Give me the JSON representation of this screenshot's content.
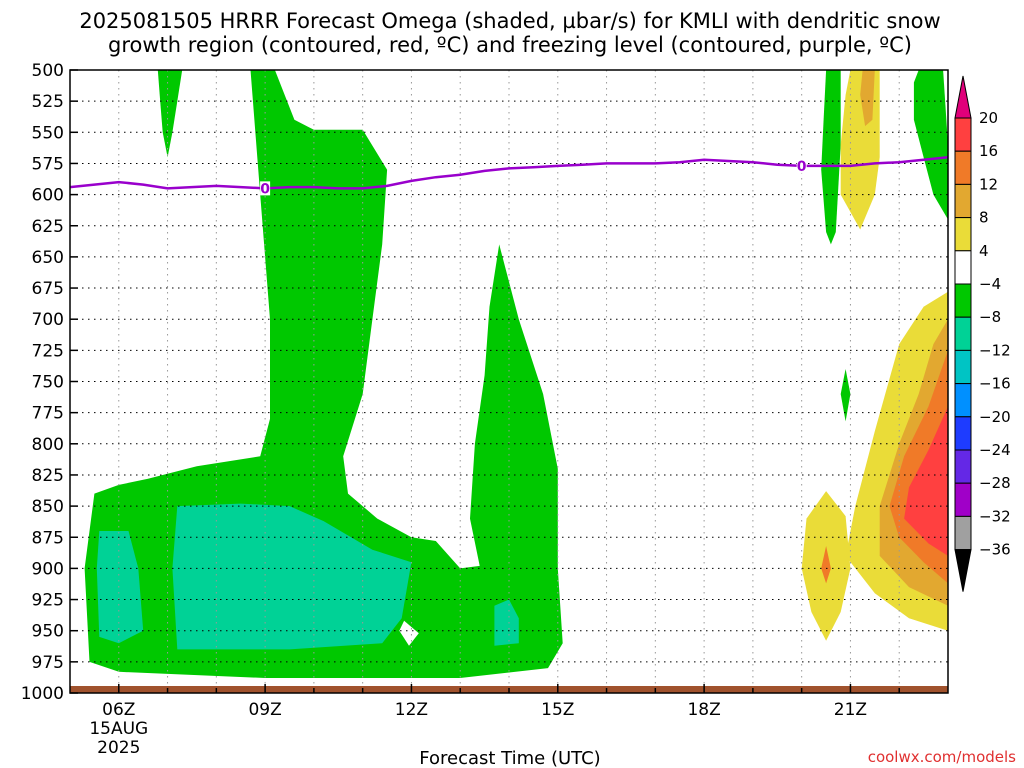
{
  "chart_data": {
    "type": "heatmap",
    "title_line1": "2025081505 HRRR Forecast Omega (shaded, µbar/s) for KMLI with dendritic snow",
    "title_line2": "growth region (contoured, red, ºC) and freezing level (contoured, purple, ºC)",
    "xlabel": "Forecast Time (UTC)",
    "credit": "coolwx.com/models",
    "x_range": [
      5.0,
      23.0
    ],
    "x_ticks": [
      {
        "value": 6,
        "label": "06Z",
        "sub1": "15AUG",
        "sub2": "2025"
      },
      {
        "value": 9,
        "label": "09Z"
      },
      {
        "value": 12,
        "label": "12Z"
      },
      {
        "value": 15,
        "label": "15Z"
      },
      {
        "value": 18,
        "label": "18Z"
      },
      {
        "value": 21,
        "label": "21Z"
      }
    ],
    "y_range": [
      1000,
      500
    ],
    "y_ticks": [
      500,
      525,
      550,
      575,
      600,
      625,
      650,
      675,
      700,
      725,
      750,
      775,
      800,
      825,
      850,
      875,
      900,
      925,
      950,
      975,
      1000
    ],
    "y_tick_labels": [
      "500",
      "525",
      "550",
      "575",
      "600",
      "625",
      "650",
      "675",
      "700",
      "725",
      "750",
      "775",
      "800",
      "825",
      "850",
      "875",
      "900",
      "925",
      "950",
      "975",
      "1000"
    ],
    "grid": true,
    "colorbar": {
      "labels": [
        "20",
        "16",
        "12",
        "8",
        "4",
        "−4",
        "−8",
        "−12",
        "−16",
        "−20",
        "−24",
        "−28",
        "−32",
        "−36"
      ],
      "colors": [
        "#e0007a",
        "#ff4040",
        "#f07a28",
        "#e2a830",
        "#eadc38",
        "#ffffff",
        "#00c800",
        "#00d296",
        "#00c4c4",
        "#0090ff",
        "#1e3cff",
        "#6428e6",
        "#a000c8",
        "#a0a0a0",
        "#000000"
      ],
      "boundaries": [
        20,
        16,
        12,
        8,
        4,
        -4,
        -8,
        -12,
        -16,
        -20,
        -24,
        -28,
        -32,
        -36
      ]
    },
    "freezing_level": {
      "label": "0",
      "color": "#9900cc",
      "x": [
        5.0,
        5.5,
        6.0,
        6.5,
        7.0,
        7.5,
        8.0,
        8.5,
        9.0,
        9.5,
        10.0,
        10.5,
        11.0,
        11.5,
        12.0,
        12.5,
        13.0,
        13.5,
        14.0,
        14.5,
        15.0,
        15.5,
        16.0,
        16.5,
        17.0,
        17.5,
        18.0,
        18.5,
        19.0,
        19.5,
        20.0,
        20.5,
        21.0,
        21.5,
        22.0,
        22.5,
        23.0
      ],
      "p": [
        594,
        592,
        590,
        592,
        595,
        594,
        593,
        594,
        595,
        594,
        594,
        595,
        595,
        593,
        589,
        586,
        584,
        581,
        579,
        578,
        577,
        576,
        575,
        575,
        575,
        574,
        572,
        573,
        574,
        576,
        577,
        577,
        577,
        575,
        574,
        572,
        570
      ]
    },
    "omega_regions": [
      {
        "value": "-4 to -8",
        "color": "#00c800",
        "points": [
          [
            6.8,
            500
          ],
          [
            7.3,
            500
          ],
          [
            7.2,
            525
          ],
          [
            7.1,
            550
          ],
          [
            7.0,
            570
          ],
          [
            6.9,
            550
          ],
          [
            6.85,
            525
          ]
        ]
      },
      {
        "value": "-4 to -8",
        "color": "#00c800",
        "points": [
          [
            8.7,
            500
          ],
          [
            9.2,
            500
          ],
          [
            9.6,
            540
          ],
          [
            10.0,
            548
          ],
          [
            11.0,
            548
          ],
          [
            11.5,
            580
          ],
          [
            11.4,
            640
          ],
          [
            11.2,
            700
          ],
          [
            11.0,
            760
          ],
          [
            10.6,
            810
          ],
          [
            10.7,
            840
          ],
          [
            11.3,
            860
          ],
          [
            12.0,
            875
          ],
          [
            12.5,
            878
          ],
          [
            13.0,
            900
          ],
          [
            13.4,
            898
          ],
          [
            13.2,
            860
          ],
          [
            13.3,
            800
          ],
          [
            13.5,
            745
          ],
          [
            13.6,
            690
          ],
          [
            13.8,
            640
          ],
          [
            14.2,
            700
          ],
          [
            14.7,
            760
          ],
          [
            15.0,
            820
          ],
          [
            15.0,
            900
          ],
          [
            15.1,
            960
          ],
          [
            14.8,
            980
          ],
          [
            13.0,
            988
          ],
          [
            9.0,
            988
          ],
          [
            6.0,
            983
          ],
          [
            5.4,
            975
          ],
          [
            5.3,
            900
          ],
          [
            5.5,
            840
          ],
          [
            6.0,
            833
          ],
          [
            6.6,
            828
          ],
          [
            7.6,
            818
          ],
          [
            8.9,
            810
          ],
          [
            9.1,
            780
          ],
          [
            9.1,
            700
          ],
          [
            8.9,
            600
          ]
        ]
      },
      {
        "value": "-4 to -8",
        "color": "#00c800",
        "points": [
          [
            20.5,
            500
          ],
          [
            20.8,
            500
          ],
          [
            20.8,
            560
          ],
          [
            20.7,
            630
          ],
          [
            20.6,
            640
          ],
          [
            20.5,
            630
          ],
          [
            20.4,
            580
          ],
          [
            20.45,
            540
          ]
        ]
      },
      {
        "value": "-4 to -8",
        "color": "#00c800",
        "points": [
          [
            22.4,
            500
          ],
          [
            22.9,
            500
          ],
          [
            23.0,
            560
          ],
          [
            23.0,
            620
          ],
          [
            22.7,
            600
          ],
          [
            22.5,
            570
          ],
          [
            22.3,
            540
          ],
          [
            22.3,
            510
          ]
        ]
      },
      {
        "value": "-4 to -8",
        "color": "#00c800",
        "points": [
          [
            20.9,
            740
          ],
          [
            21.0,
            760
          ],
          [
            20.9,
            782
          ],
          [
            20.8,
            760
          ]
        ]
      },
      {
        "value": "-8 to -12",
        "color": "#00d296",
        "points": [
          [
            5.6,
            870
          ],
          [
            6.2,
            870
          ],
          [
            6.4,
            900
          ],
          [
            6.5,
            950
          ],
          [
            6.0,
            960
          ],
          [
            5.6,
            955
          ],
          [
            5.55,
            900
          ]
        ]
      },
      {
        "value": "-8 to -12",
        "color": "#00d296",
        "points": [
          [
            7.2,
            850
          ],
          [
            8.5,
            848
          ],
          [
            9.5,
            850
          ],
          [
            10.2,
            862
          ],
          [
            11.2,
            885
          ],
          [
            12.0,
            895
          ],
          [
            11.8,
            940
          ],
          [
            11.4,
            960
          ],
          [
            9.5,
            965
          ],
          [
            7.2,
            965
          ],
          [
            7.1,
            900
          ]
        ]
      },
      {
        "value": "-8 to -12",
        "color": "#00d296",
        "points": [
          [
            13.7,
            930
          ],
          [
            14.0,
            925
          ],
          [
            14.2,
            940
          ],
          [
            14.2,
            960
          ],
          [
            13.7,
            962
          ]
        ]
      },
      {
        "value": "4 to 8",
        "color": "#eadc38",
        "points": [
          [
            21.0,
            500
          ],
          [
            21.6,
            500
          ],
          [
            21.6,
            570
          ],
          [
            21.5,
            600
          ],
          [
            21.2,
            628
          ],
          [
            20.8,
            600
          ],
          [
            20.8,
            560
          ],
          [
            20.9,
            520
          ]
        ]
      },
      {
        "value": "4 to 8",
        "color": "#eadc38",
        "points": [
          [
            20.5,
            838
          ],
          [
            20.9,
            858
          ],
          [
            21.0,
            900
          ],
          [
            20.8,
            935
          ],
          [
            20.5,
            958
          ],
          [
            20.2,
            935
          ],
          [
            20.0,
            900
          ],
          [
            20.1,
            860
          ]
        ]
      },
      {
        "value": "4 to 8",
        "color": "#eadc38",
        "points": [
          [
            23.0,
            678
          ],
          [
            22.5,
            690
          ],
          [
            22.0,
            720
          ],
          [
            21.5,
            790
          ],
          [
            21.1,
            850
          ],
          [
            20.9,
            890
          ],
          [
            21.5,
            920
          ],
          [
            22.2,
            940
          ],
          [
            23.0,
            950
          ]
        ]
      },
      {
        "value": "8 to 12",
        "color": "#e2a830",
        "points": [
          [
            21.25,
            500
          ],
          [
            21.5,
            500
          ],
          [
            21.45,
            540
          ],
          [
            21.3,
            545
          ],
          [
            21.2,
            520
          ]
        ]
      },
      {
        "value": "8 to 12",
        "color": "#e2a830",
        "points": [
          [
            23.0,
            700
          ],
          [
            22.7,
            720
          ],
          [
            22.4,
            760
          ],
          [
            22.0,
            800
          ],
          [
            21.6,
            850
          ],
          [
            21.6,
            890
          ],
          [
            22.2,
            915
          ],
          [
            23.0,
            930
          ]
        ]
      },
      {
        "value": "12 to 16",
        "color": "#f07a28",
        "points": [
          [
            23.0,
            725
          ],
          [
            22.6,
            770
          ],
          [
            22.1,
            810
          ],
          [
            21.8,
            850
          ],
          [
            22.0,
            875
          ],
          [
            22.5,
            895
          ],
          [
            23.0,
            912
          ]
        ]
      },
      {
        "value": "12 to 16",
        "color": "#f07a28",
        "points": [
          [
            20.5,
            882
          ],
          [
            20.6,
            900
          ],
          [
            20.5,
            912
          ],
          [
            20.4,
            900
          ]
        ]
      },
      {
        "value": "16 to 20",
        "color": "#ff4040",
        "points": [
          [
            23.0,
            770
          ],
          [
            22.6,
            805
          ],
          [
            22.2,
            835
          ],
          [
            22.1,
            860
          ],
          [
            22.6,
            880
          ],
          [
            23.0,
            890
          ]
        ]
      }
    ]
  }
}
